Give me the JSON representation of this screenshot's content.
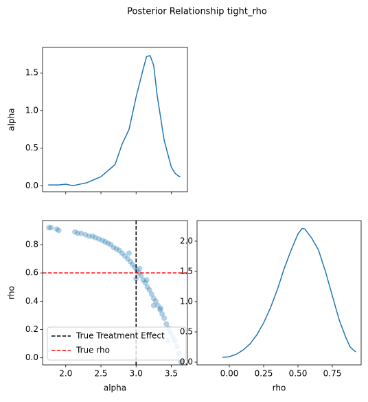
{
  "title": "Posterior Relationship tight_rho",
  "chart_data": [
    {
      "type": "line",
      "ylabel": "alpha",
      "x": [
        1.75,
        1.9,
        2.0,
        2.1,
        2.2,
        2.3,
        2.4,
        2.5,
        2.6,
        2.7,
        2.8,
        2.9,
        3.0,
        3.1,
        3.15,
        3.2,
        3.25,
        3.3,
        3.4,
        3.5,
        3.55,
        3.6,
        3.63
      ],
      "values": [
        0.01,
        0.01,
        0.02,
        0.0,
        0.02,
        0.04,
        0.08,
        0.12,
        0.2,
        0.28,
        0.55,
        0.75,
        1.18,
        1.55,
        1.72,
        1.73,
        1.6,
        1.2,
        0.6,
        0.25,
        0.17,
        0.13,
        0.12
      ],
      "color": "#1f77b4",
      "xlim": [
        1.67,
        3.73
      ],
      "ylim": [
        -0.08,
        1.84
      ],
      "xticks": [
        2,
        2.5,
        3,
        3.5
      ],
      "show_xtick_labels": false,
      "yticks": [
        {
          "value": 0,
          "label": "0.0"
        },
        {
          "value": 0.5,
          "label": "0.5"
        },
        {
          "value": 1,
          "label": "1.0"
        },
        {
          "value": 1.5,
          "label": "1.5"
        }
      ]
    },
    {
      "type": "scatter",
      "xlabel": "alpha",
      "ylabel": "rho",
      "x": [
        1.76,
        1.79,
        1.87,
        1.9,
        2.13,
        2.17,
        2.22,
        2.28,
        2.33,
        2.38,
        2.42,
        2.47,
        2.52,
        2.56,
        2.6,
        2.64,
        2.68,
        2.72,
        2.76,
        2.8,
        2.84,
        2.88,
        2.92,
        2.95,
        2.98,
        3.01,
        3.04,
        3.07,
        3.1,
        3.13,
        3.16,
        3.19,
        3.22,
        3.25,
        3.28,
        3.31,
        3.34,
        3.37,
        3.4,
        3.43,
        3.46,
        3.49,
        3.52,
        3.55,
        3.58,
        3.61,
        3.64,
        3.05,
        3.15,
        3.25,
        3.35,
        3.45,
        2.9,
        3.0
      ],
      "values": [
        0.92,
        0.92,
        0.91,
        0.9,
        0.89,
        0.88,
        0.88,
        0.87,
        0.86,
        0.86,
        0.85,
        0.84,
        0.83,
        0.82,
        0.81,
        0.8,
        0.78,
        0.77,
        0.76,
        0.74,
        0.72,
        0.7,
        0.68,
        0.66,
        0.64,
        0.62,
        0.6,
        0.58,
        0.55,
        0.53,
        0.5,
        0.48,
        0.45,
        0.42,
        0.4,
        0.37,
        0.34,
        0.31,
        0.28,
        0.24,
        0.21,
        0.18,
        0.15,
        0.12,
        0.08,
        0.03,
        -0.03,
        0.63,
        0.55,
        0.37,
        0.35,
        0.12,
        0.74,
        0.56
      ],
      "color": "#1f77b4",
      "xlim": [
        1.67,
        3.73
      ],
      "ylim": [
        -0.05,
        0.97
      ],
      "xticks": [
        {
          "value": 2,
          "label": "2.0"
        },
        {
          "value": 2.5,
          "label": "2.5"
        },
        {
          "value": 3,
          "label": "3.0"
        },
        {
          "value": 3.5,
          "label": "3.5"
        }
      ],
      "yticks": [
        {
          "value": 0,
          "label": "0.0"
        },
        {
          "value": 0.2,
          "label": "0.2"
        },
        {
          "value": 0.4,
          "label": "0.4"
        },
        {
          "value": 0.6,
          "label": "0.6"
        },
        {
          "value": 0.8,
          "label": "0.8"
        }
      ],
      "reference_lines": [
        {
          "name": "True Treatment Effect",
          "orientation": "vertical",
          "value": 3,
          "color": "#000000"
        },
        {
          "name": "True rho",
          "orientation": "horizontal",
          "value": 0.6,
          "color": "#ff0000"
        }
      ],
      "legend": "lower left"
    },
    {
      "type": "line",
      "xlabel": "rho",
      "x": [
        -0.05,
        0,
        0.05,
        0.1,
        0.15,
        0.2,
        0.25,
        0.3,
        0.35,
        0.4,
        0.45,
        0.5,
        0.53,
        0.55,
        0.6,
        0.65,
        0.7,
        0.75,
        0.8,
        0.85,
        0.88,
        0.92
      ],
      "values": [
        0.08,
        0.09,
        0.13,
        0.2,
        0.3,
        0.45,
        0.65,
        0.9,
        1.2,
        1.55,
        1.85,
        2.12,
        2.21,
        2.2,
        2.05,
        1.85,
        1.5,
        1.1,
        0.7,
        0.4,
        0.25,
        0.17
      ],
      "color": "#1f77b4",
      "xlim": [
        -0.235,
        0.96
      ],
      "ylim": [
        -0.045,
        2.34
      ],
      "xticks": [
        {
          "value": 0,
          "label": "0.00"
        },
        {
          "value": 0.25,
          "label": "0.25"
        },
        {
          "value": 0.5,
          "label": "0.50"
        },
        {
          "value": 0.75,
          "label": "0.75"
        }
      ],
      "yticks": [
        {
          "value": 0,
          "label": "0.0"
        },
        {
          "value": 0.5,
          "label": "0.5"
        },
        {
          "value": 1,
          "label": "1.0"
        },
        {
          "value": 1.5,
          "label": "1.5"
        },
        {
          "value": 2,
          "label": "2.0"
        }
      ]
    }
  ]
}
